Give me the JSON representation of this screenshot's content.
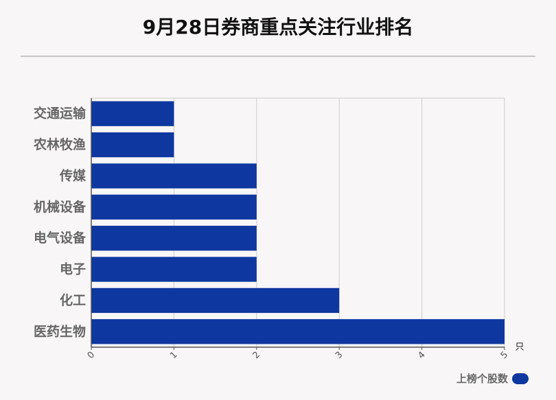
{
  "title": "9月28日券商重点关注行业排名",
  "colors": {
    "bar": "#0e37a0",
    "grid": "#cccccc",
    "axis": "#555555"
  },
  "legend": {
    "label": "上榜个股数"
  },
  "chart_data": {
    "type": "bar",
    "orientation": "horizontal",
    "categories": [
      "交通运输",
      "农林牧渔",
      "传媒",
      "机械设备",
      "电气设备",
      "电子",
      "化工",
      "医药生物"
    ],
    "series": [
      {
        "name": "上榜个股数",
        "values": [
          1,
          1,
          2,
          2,
          2,
          2,
          3,
          5
        ]
      }
    ],
    "xlim": [
      0,
      5
    ],
    "xticks": [
      "0",
      "1",
      "2",
      "3",
      "4",
      "5"
    ],
    "unit": "只",
    "grid": true,
    "legend_position": "bottom-right"
  }
}
